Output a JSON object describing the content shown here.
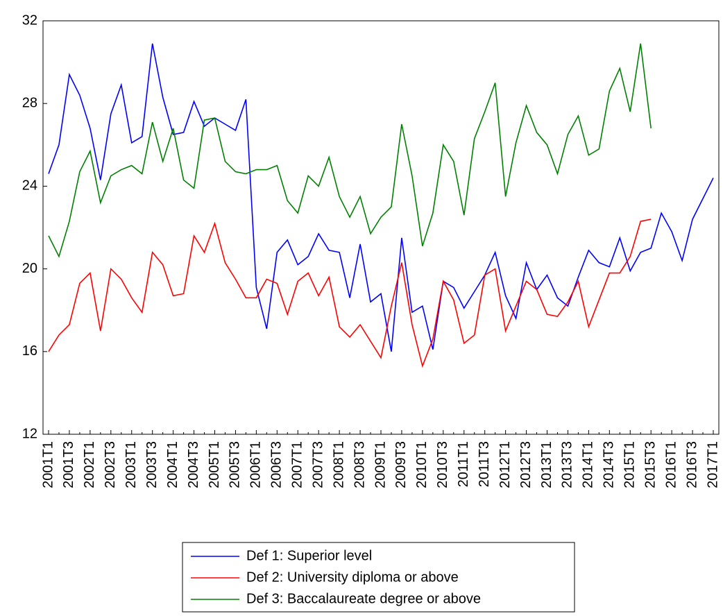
{
  "chart_data": {
    "type": "line",
    "categories": [
      "2001T1",
      null,
      "2001T3",
      null,
      "2002T1",
      null,
      "2002T3",
      null,
      "2003T1",
      null,
      "2003T3",
      null,
      "2004T1",
      null,
      "2004T3",
      null,
      "2005T1",
      null,
      "2005T3",
      null,
      "2006T1",
      null,
      "2006T3",
      null,
      "2007T1",
      null,
      "2007T3",
      null,
      "2008T1",
      null,
      "2008T3",
      null,
      "2009T1",
      null,
      "2009T3",
      null,
      "2010T1",
      null,
      "2010T3",
      null,
      "2011T1",
      null,
      "2011T3",
      null,
      "2012T1",
      null,
      "2012T3",
      null,
      "2013T1",
      null,
      "2013T3",
      null,
      "2014T1",
      null,
      "2014T3",
      null,
      "2015T1",
      null,
      "2015T3",
      null,
      "2016T1",
      null,
      "2016T3",
      null,
      "2017T1"
    ],
    "series": [
      {
        "name": "Def 1: Superior level",
        "color": "#0000ff",
        "values": [
          24.6,
          26.0,
          29.4,
          28.4,
          26.8,
          24.3,
          27.5,
          28.9,
          26.1,
          26.4,
          30.9,
          28.3,
          26.5,
          26.6,
          28.1,
          26.9,
          27.3,
          27.0,
          26.7,
          28.2,
          19.1,
          17.1,
          20.8,
          21.4,
          20.2,
          20.6,
          21.7,
          20.9,
          20.8,
          18.6,
          21.2,
          18.4,
          18.8,
          16.0,
          21.5,
          17.9,
          18.2,
          16.1,
          19.4,
          19.1,
          18.1,
          18.9,
          19.7,
          20.8,
          18.7,
          17.6,
          20.3,
          19.0,
          19.7,
          18.6,
          18.2,
          19.6,
          20.9,
          20.3,
          20.1,
          21.5,
          19.9,
          20.8,
          21.0,
          22.7,
          21.8,
          20.4,
          22.4,
          23.4,
          24.4
        ]
      },
      {
        "name": "Def 2: University diploma or above",
        "color": "#ff0000",
        "values": [
          16.0,
          16.8,
          17.3,
          19.3,
          19.8,
          17.0,
          20.0,
          19.5,
          18.6,
          17.9,
          20.8,
          20.2,
          18.7,
          18.8,
          21.6,
          20.8,
          22.2,
          20.3,
          19.5,
          18.6,
          18.6,
          19.5,
          19.3,
          17.8,
          19.4,
          19.8,
          18.7,
          19.6,
          17.2,
          16.7,
          17.3,
          16.5,
          15.7,
          18.2,
          20.3,
          17.3,
          15.3,
          16.6,
          19.4,
          18.5,
          16.4,
          16.8,
          19.7,
          20.0,
          17.0,
          18.2,
          19.4,
          19.0,
          17.8,
          17.7,
          18.4,
          19.4,
          17.2,
          18.5,
          19.8,
          19.8,
          20.6,
          22.3,
          22.4,
          null,
          null,
          null,
          null,
          null,
          null
        ]
      },
      {
        "name": "Def 3: Baccalaureate degree or above",
        "color": "#008000",
        "values": [
          21.6,
          20.6,
          22.3,
          24.7,
          25.7,
          23.2,
          24.5,
          24.8,
          25.0,
          24.6,
          27.1,
          25.2,
          26.8,
          24.3,
          23.9,
          27.2,
          27.3,
          25.2,
          24.7,
          24.6,
          24.8,
          24.8,
          25.0,
          23.3,
          22.7,
          24.5,
          24.0,
          25.4,
          23.5,
          22.5,
          23.5,
          21.7,
          22.5,
          23.0,
          27.0,
          24.5,
          21.1,
          22.7,
          26.0,
          25.2,
          22.6,
          26.3,
          27.6,
          29.0,
          23.5,
          26.1,
          27.9,
          26.6,
          26.0,
          24.6,
          26.5,
          27.4,
          25.5,
          25.8,
          28.6,
          29.7,
          27.6,
          30.9,
          26.8,
          null,
          null,
          null,
          null,
          null,
          null
        ]
      }
    ],
    "ylim": [
      12,
      32
    ],
    "yticks": [
      12,
      16,
      20,
      24,
      28,
      32
    ]
  }
}
